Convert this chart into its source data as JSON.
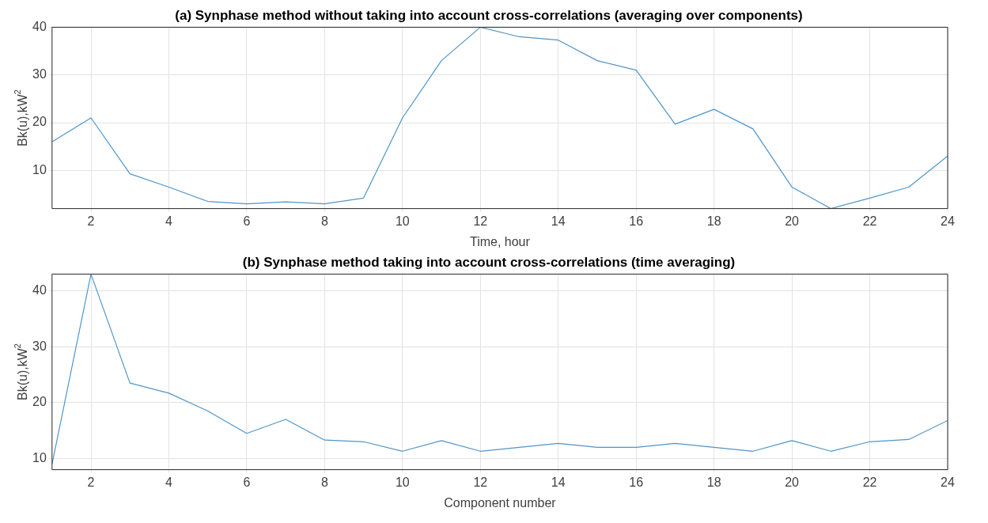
{
  "chart_data": [
    {
      "type": "line",
      "title": "(a) Synphase method without taking into account cross-correlations (averaging over components)",
      "xlabel": "Time, hour",
      "ylabel": "Bk(u),kW$^{2}$",
      "x": [
        1,
        2,
        3,
        4,
        5,
        6,
        7,
        8,
        9,
        10,
        11,
        12,
        13,
        14,
        15,
        16,
        17,
        18,
        19,
        20,
        21,
        22,
        23,
        24
      ],
      "series": [
        {
          "color": "#4f95c9",
          "values": [
            16,
            21,
            9.3,
            6.5,
            3.5,
            3,
            3.4,
            3,
            4.2,
            21,
            33,
            40,
            38,
            37.3,
            33,
            31,
            19.7,
            22.8,
            18.7,
            6.5,
            2,
            4.2,
            6.5,
            13
          ]
        }
      ],
      "xlim": [
        1,
        24
      ],
      "xticks": [
        2,
        4,
        6,
        8,
        10,
        12,
        14,
        16,
        18,
        20,
        22,
        24
      ],
      "ylim": [
        2,
        40
      ],
      "yticks": [
        10,
        20,
        30,
        40
      ],
      "grid": true,
      "legend": false,
      "marker": "none",
      "line_style": "solid"
    },
    {
      "type": "line",
      "title": "(b) Synphase method taking into account cross-correlations (time averaging)",
      "xlabel": "Component number",
      "ylabel": "Bk(u),kW$^{2}$",
      "x": [
        1,
        2,
        3,
        4,
        5,
        6,
        7,
        8,
        9,
        10,
        11,
        12,
        13,
        14,
        15,
        16,
        17,
        18,
        19,
        20,
        21,
        22,
        23,
        24
      ],
      "series": [
        {
          "color": "#4f95c9",
          "values": [
            9,
            43,
            23.5,
            21.7,
            18.5,
            14.5,
            17,
            13.3,
            13,
            11.3,
            13.2,
            11.3,
            12,
            12.7,
            12,
            12,
            12.7,
            12,
            11.3,
            13.2,
            11.3,
            13,
            13.4,
            16.8
          ]
        }
      ],
      "xlim": [
        1,
        24
      ],
      "xticks": [
        2,
        4,
        6,
        8,
        10,
        12,
        14,
        16,
        18,
        20,
        22,
        24
      ],
      "ylim": [
        8,
        43
      ],
      "yticks": [
        10,
        20,
        30,
        40
      ],
      "grid": true,
      "legend": false,
      "marker": "none",
      "line_style": "solid"
    }
  ]
}
